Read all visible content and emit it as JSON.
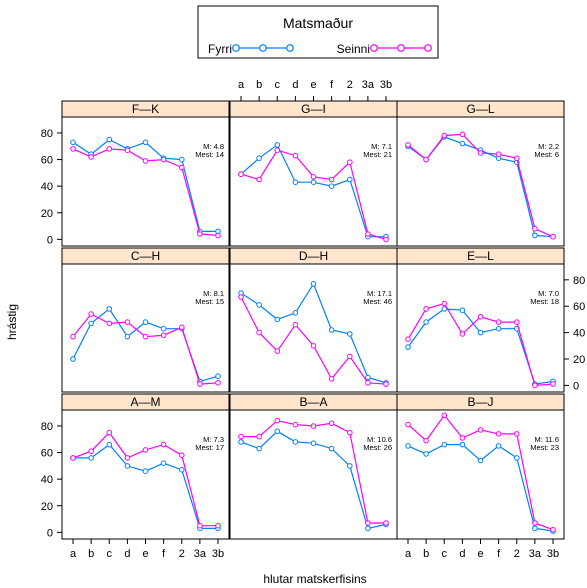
{
  "legend": {
    "title": "Matsmaður",
    "placement": "top-center",
    "entries": [
      {
        "name": "Fyrri",
        "color": "#0080ff"
      },
      {
        "name": "Seinni",
        "color": "#ff00ff"
      }
    ]
  },
  "chart_data": {
    "type": "line",
    "layout": "3x3 panels",
    "xlabel": "hlutar matskerfisins",
    "ylabel": "hrástig",
    "categories": [
      "a",
      "b",
      "c",
      "d",
      "e",
      "f",
      "2",
      "3a",
      "3b"
    ],
    "ylim": [
      -5,
      92
    ],
    "yticks": [
      0,
      20,
      40,
      60,
      80
    ],
    "strip_color": "#ffe5cc",
    "grid": false,
    "panels": [
      {
        "label": "F—K",
        "stats": [
          "M: 4.8",
          "Mest: 14"
        ],
        "series": [
          {
            "name": "Fyrri",
            "values": [
              73,
              64,
              75,
              68,
              73,
              61,
              60,
              6,
              6
            ]
          },
          {
            "name": "Seinni",
            "values": [
              68,
              62,
              68,
              67,
              59,
              60,
              54,
              4,
              3
            ]
          }
        ]
      },
      {
        "label": "G—I",
        "stats": [
          "M: 7.1",
          "Mest: 21"
        ],
        "series": [
          {
            "name": "Fyrri",
            "values": [
              49,
              61,
              71,
              43,
              43,
              40,
              45,
              2,
              2
            ]
          },
          {
            "name": "Seinni",
            "values": [
              49,
              45,
              67,
              63,
              47,
              45,
              58,
              4,
              0
            ]
          }
        ]
      },
      {
        "label": "G—L",
        "stats": [
          "M: 2.2",
          "Mest: 6"
        ],
        "series": [
          {
            "name": "Fyrri",
            "values": [
              70,
              60,
              77,
              72,
              67,
              61,
              58,
              3,
              2
            ]
          },
          {
            "name": "Seinni",
            "values": [
              71,
              60,
              78,
              79,
              65,
              64,
              61,
              8,
              2
            ]
          }
        ]
      },
      {
        "label": "C—H",
        "stats": [
          "M: 8.1",
          "Mest: 15"
        ],
        "series": [
          {
            "name": "Fyrri",
            "values": [
              20,
              47,
              58,
              37,
              48,
              43,
              43,
              3,
              7
            ]
          },
          {
            "name": "Seinni",
            "values": [
              37,
              54,
              47,
              48,
              37,
              38,
              44,
              1,
              2
            ]
          }
        ]
      },
      {
        "label": "D—H",
        "stats": [
          "M: 17.1",
          "Mest: 46"
        ],
        "series": [
          {
            "name": "Fyrri",
            "values": [
              70,
              61,
              50,
              55,
              77,
              42,
              39,
              6,
              2
            ]
          },
          {
            "name": "Seinni",
            "values": [
              67,
              40,
              26,
              46,
              30,
              5,
              22,
              2,
              1
            ]
          }
        ]
      },
      {
        "label": "E—L",
        "stats": [
          "M: 7.0",
          "Mest: 18"
        ],
        "series": [
          {
            "name": "Fyrri",
            "values": [
              29,
              48,
              58,
              57,
              40,
              43,
              43,
              1,
              3
            ]
          },
          {
            "name": "Seinni",
            "values": [
              35,
              58,
              62,
              39,
              52,
              48,
              48,
              0,
              1
            ]
          }
        ]
      },
      {
        "label": "A—M",
        "stats": [
          "M: 7.3",
          "Mest: 17"
        ],
        "series": [
          {
            "name": "Fyrri",
            "values": [
              56,
              56,
              66,
              50,
              46,
              52,
              47,
              3,
              3
            ]
          },
          {
            "name": "Seinni",
            "values": [
              56,
              61,
              75,
              56,
              62,
              66,
              58,
              5,
              5
            ]
          }
        ]
      },
      {
        "label": "B—A",
        "stats": [
          "M: 10.6",
          "Mest: 26"
        ],
        "series": [
          {
            "name": "Fyrri",
            "values": [
              68,
              63,
              76,
              68,
              67,
              63,
              50,
              3,
              6
            ]
          },
          {
            "name": "Seinni",
            "values": [
              72,
              72,
              84,
              81,
              80,
              82,
              75,
              7,
              7
            ]
          }
        ]
      },
      {
        "label": "B—J",
        "stats": [
          "M: 11.6",
          "Mest: 23"
        ],
        "series": [
          {
            "name": "Fyrri",
            "values": [
              65,
              59,
              66,
              66,
              54,
              65,
              56,
              3,
              1
            ]
          },
          {
            "name": "Seinni",
            "values": [
              81,
              69,
              88,
              71,
              77,
              74,
              74,
              7,
              2
            ]
          }
        ]
      }
    ]
  }
}
